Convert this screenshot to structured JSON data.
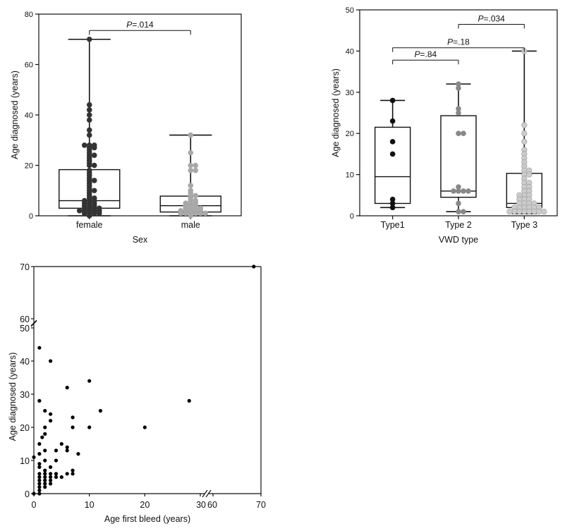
{
  "chart_data": [
    {
      "id": "sex",
      "type": "box",
      "xlabel": "Sex",
      "ylabel": "Age diagnosed (years)",
      "ylim": [
        0,
        80
      ],
      "yticks": [
        0,
        20,
        40,
        60,
        80
      ],
      "categories": [
        "female",
        "male"
      ],
      "colors": [
        "#333333",
        "#a8a8a8"
      ],
      "boxes": [
        {
          "min": 0,
          "q1": 3,
          "median": 6,
          "q3": 18.3,
          "max": 70
        },
        {
          "min": 0,
          "q1": 1.5,
          "median": 4,
          "q3": 7.8,
          "max": 32
        }
      ],
      "points": [
        [
          70,
          44,
          42,
          40,
          38,
          34,
          32,
          28,
          28,
          28,
          27,
          27,
          26,
          25,
          24,
          24,
          23,
          22,
          21,
          20,
          20,
          18,
          17,
          16,
          15,
          14,
          14,
          13,
          12,
          11,
          10,
          10,
          9,
          8,
          7,
          7,
          6,
          6,
          6,
          5,
          5,
          5,
          4,
          4,
          4,
          3,
          3,
          3,
          3,
          2,
          2,
          2,
          2,
          2,
          1,
          1,
          1,
          1,
          0
        ],
        [
          32,
          25,
          20,
          20,
          18,
          18,
          12,
          10,
          9,
          8,
          8,
          7,
          6,
          6,
          5,
          5,
          5,
          4,
          4,
          4,
          3,
          3,
          3,
          3,
          2,
          2,
          2,
          2,
          2,
          1,
          1,
          1,
          1,
          1,
          1,
          0
        ]
      ],
      "brackets": [
        {
          "from": 0,
          "to": 1,
          "y": 73.5,
          "p_label": "P",
          "p_value": "=.014"
        }
      ]
    },
    {
      "id": "vwd",
      "type": "box",
      "xlabel": "VWD type",
      "ylabel": "Age diagnosed (years)",
      "ylim": [
        0,
        50
      ],
      "yticks": [
        0,
        10,
        20,
        30,
        40,
        50
      ],
      "categories": [
        "Type1",
        "Type 2",
        "Type 3"
      ],
      "colors": [
        "#111111",
        "#888888",
        "#cccccc"
      ],
      "boxes": [
        {
          "min": 2,
          "q1": 3,
          "median": 9.5,
          "q3": 21.5,
          "max": 28
        },
        {
          "min": 1,
          "q1": 4.5,
          "median": 6,
          "q3": 24.3,
          "max": 32
        },
        {
          "min": 0.5,
          "q1": 2,
          "median": 3,
          "q3": 10.3,
          "max": 40
        }
      ],
      "points": [
        [
          28,
          23,
          18,
          15,
          4,
          3,
          2
        ],
        [
          32,
          31,
          26,
          25,
          20,
          20,
          7,
          6,
          6,
          6,
          6,
          3,
          1,
          1
        ],
        [
          40,
          22,
          20,
          18,
          16,
          15,
          14,
          13,
          12,
          11,
          11,
          10,
          10,
          9,
          8,
          8,
          7,
          7,
          6,
          6,
          5,
          5,
          5,
          4,
          4,
          4,
          3,
          3,
          3,
          3,
          2,
          2,
          2,
          2,
          2,
          2,
          1,
          1,
          1,
          1,
          1,
          1,
          1,
          1
        ]
      ],
      "brackets": [
        {
          "from": 1,
          "to": 2,
          "y": 46.5,
          "p_label": "P",
          "p_value": "=.034"
        },
        {
          "from": 0,
          "to": 2,
          "y": 40.8,
          "p_label": "P",
          "p_value": "=.18"
        },
        {
          "from": 0,
          "to": 1,
          "y": 37.8,
          "p_label": "P",
          "p_value": "=.84"
        }
      ]
    },
    {
      "id": "scatter",
      "type": "scatter",
      "xlabel": "Age first bleed (years)",
      "ylabel": "Age diagnosed (years)",
      "xticks": [
        "0",
        "10",
        "20",
        "30",
        "60",
        "70"
      ],
      "yticks": [
        "0",
        "10",
        "20",
        "30",
        "40",
        "50",
        "60",
        "70"
      ],
      "xlim": [
        0,
        70
      ],
      "ylim": [
        0,
        70
      ],
      "x_break": [
        30,
        60
      ],
      "y_break": [
        50,
        60
      ],
      "points": [
        [
          68.5,
          70
        ],
        [
          1,
          44
        ],
        [
          3,
          40
        ],
        [
          10,
          34
        ],
        [
          6,
          32
        ],
        [
          1,
          28
        ],
        [
          28,
          28
        ],
        [
          2,
          25
        ],
        [
          12,
          25
        ],
        [
          3,
          24
        ],
        [
          7,
          23
        ],
        [
          3,
          22
        ],
        [
          2,
          20
        ],
        [
          7,
          20
        ],
        [
          10,
          20
        ],
        [
          20,
          20
        ],
        [
          2,
          18
        ],
        [
          1.5,
          17
        ],
        [
          1,
          15
        ],
        [
          5,
          15
        ],
        [
          6,
          14
        ],
        [
          2,
          13
        ],
        [
          4,
          13
        ],
        [
          6,
          13
        ],
        [
          1,
          12
        ],
        [
          8,
          12
        ],
        [
          0,
          11
        ],
        [
          2,
          10
        ],
        [
          4,
          10
        ],
        [
          1,
          9
        ],
        [
          1,
          8
        ],
        [
          3,
          8
        ],
        [
          2,
          7
        ],
        [
          7,
          7
        ],
        [
          1,
          6
        ],
        [
          2,
          6
        ],
        [
          3,
          6
        ],
        [
          4,
          6
        ],
        [
          5,
          5
        ],
        [
          6,
          6
        ],
        [
          7,
          6
        ],
        [
          1,
          5
        ],
        [
          2,
          5
        ],
        [
          3,
          5
        ],
        [
          4,
          5
        ],
        [
          1,
          4
        ],
        [
          2,
          4
        ],
        [
          3,
          4
        ],
        [
          1,
          3
        ],
        [
          2,
          3
        ],
        [
          3,
          3
        ],
        [
          1,
          2
        ],
        [
          2,
          2
        ],
        [
          1,
          1
        ],
        [
          0,
          0
        ],
        [
          1,
          0
        ]
      ]
    }
  ]
}
